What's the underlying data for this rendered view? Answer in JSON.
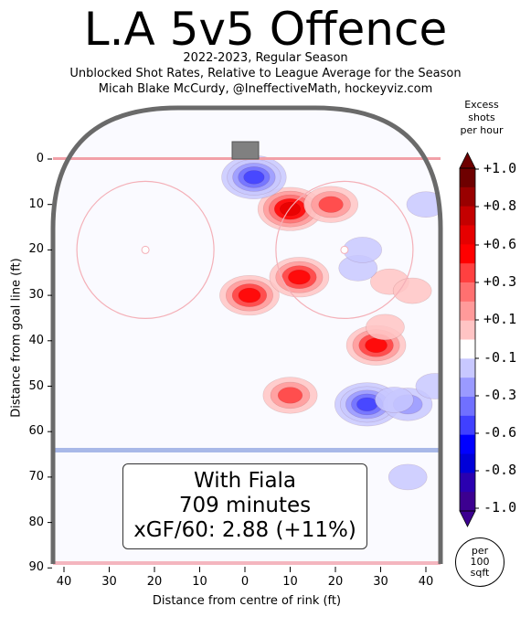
{
  "header": {
    "title": "L.A 5v5 Offence",
    "subtitle1": "2022-2023, Regular Season",
    "subtitle2": "Unblocked Shot Rates, Relative to League Average for the Season",
    "subtitle3": "Micah Blake McCurdy, @IneffectiveMath, hockeyviz.com"
  },
  "infobox": {
    "line1": "With Fiala",
    "line2": "709 minutes",
    "line3": "xGF/60: 2.88 (+11%)"
  },
  "colorbar": {
    "title_lines": [
      "Excess",
      "shots",
      "per hour"
    ],
    "labels": [
      "+1.0",
      "+0.8",
      "+0.6",
      "+0.3",
      "+0.1",
      "-0.1",
      "-0.3",
      "-0.6",
      "-0.8",
      "-1.0"
    ],
    "colors": [
      "#6e0000",
      "#990000",
      "#c40000",
      "#e60000",
      "#ff0000",
      "#ff4040",
      "#ff7070",
      "#ff9a9a",
      "#ffc4c4",
      "#ffffff",
      "#c8c8ff",
      "#9a9aff",
      "#7070ff",
      "#4040ff",
      "#0000ff",
      "#0000d8",
      "#2a00b0",
      "#3c0090"
    ],
    "unit_lines": [
      "per",
      "100",
      "sqft"
    ]
  },
  "axes": {
    "x_label": "Distance from centre of rink (ft)",
    "y_label": "Distance from goal line (ft)",
    "x_ticks": [
      "40",
      "30",
      "20",
      "10",
      "0",
      "10",
      "20",
      "30",
      "40"
    ],
    "y_ticks": [
      "0",
      "10",
      "20",
      "30",
      "40",
      "50",
      "60",
      "70",
      "80",
      "90"
    ]
  },
  "chart_data": {
    "type": "heatmap",
    "title": "L.A 5v5 Offence",
    "xlabel": "Distance from centre of rink (ft)",
    "ylabel": "Distance from goal line (ft)",
    "xlim": [
      -42.5,
      42.5
    ],
    "ylim": [
      0,
      90
    ],
    "colorbar_label": "Excess shots per hour",
    "colorbar_range": [
      -1.0,
      1.0
    ],
    "hotspots": [
      {
        "x": 10,
        "y": 11,
        "value": 0.6
      },
      {
        "x": 1,
        "y": 30,
        "value": 0.5
      },
      {
        "x": 12,
        "y": 26,
        "value": 0.5
      },
      {
        "x": 29,
        "y": 41,
        "value": 0.5
      },
      {
        "x": 10,
        "y": 52,
        "value": 0.4
      },
      {
        "x": 19,
        "y": 10,
        "value": 0.4
      },
      {
        "x": 32,
        "y": 27,
        "value": 0.1
      },
      {
        "x": 37,
        "y": 29,
        "value": 0.1
      },
      {
        "x": 31,
        "y": 37,
        "value": 0.1
      },
      {
        "x": 2,
        "y": 4,
        "value": -0.6
      },
      {
        "x": 27,
        "y": 54,
        "value": -0.6
      },
      {
        "x": 36,
        "y": 54,
        "value": -0.3
      },
      {
        "x": 36,
        "y": 70,
        "value": -0.1
      },
      {
        "x": 25,
        "y": 24,
        "value": -0.1
      },
      {
        "x": 26,
        "y": 20,
        "value": -0.1
      },
      {
        "x": 40,
        "y": 10,
        "value": -0.1
      },
      {
        "x": 42,
        "y": 50,
        "value": -0.1
      },
      {
        "x": 33,
        "y": 53,
        "value": -0.1
      },
      {
        "x": 13,
        "y": 70,
        "value": -0.1
      }
    ]
  }
}
